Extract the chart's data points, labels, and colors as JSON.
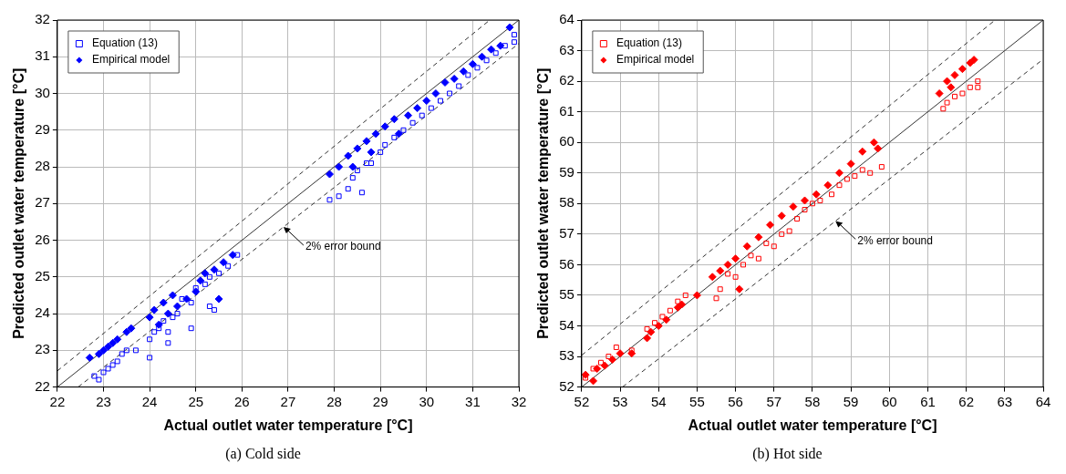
{
  "chart_data": [
    {
      "type": "scatter",
      "title": "(a) Cold side",
      "xlabel": "Actual outlet water temperature [°C]",
      "ylabel": "Predicted outlet water temperature [°C]",
      "xlim": [
        22,
        32
      ],
      "ylim": [
        22,
        32
      ],
      "xticks": [
        22,
        23,
        24,
        25,
        26,
        27,
        28,
        29,
        30,
        31,
        32
      ],
      "yticks": [
        22,
        23,
        24,
        25,
        26,
        27,
        28,
        29,
        30,
        31,
        32
      ],
      "grid": true,
      "legend": "top left",
      "annotations": [
        {
          "text": "2% error bound",
          "x": 26.9,
          "y": 26.36
        }
      ],
      "series": [
        {
          "name": "Equation (13)",
          "color": "#0000ff",
          "marker": "square",
          "x": [
            22.8,
            22.9,
            23.0,
            23.1,
            23.2,
            23.3,
            23.4,
            23.5,
            23.7,
            24.0,
            24.0,
            24.1,
            24.2,
            24.3,
            24.4,
            24.5,
            24.6,
            24.4,
            24.7,
            24.9,
            24.9,
            25.0,
            25.2,
            25.3,
            25.4,
            25.3,
            25.5,
            25.7,
            25.9,
            27.9,
            28.1,
            28.3,
            28.4,
            28.5,
            28.6,
            28.7,
            28.8,
            29.0,
            29.1,
            29.3,
            29.5,
            29.7,
            29.9,
            30.1,
            30.3,
            30.5,
            30.7,
            30.9,
            31.1,
            31.3,
            31.5,
            31.7,
            31.9,
            31.9
          ],
          "values": [
            22.3,
            22.2,
            22.4,
            22.5,
            22.6,
            22.7,
            22.9,
            23.0,
            23.0,
            22.8,
            23.3,
            23.5,
            23.6,
            23.8,
            23.5,
            23.9,
            24.0,
            23.2,
            24.4,
            23.6,
            24.3,
            24.7,
            24.8,
            24.2,
            24.1,
            25.0,
            25.1,
            25.3,
            25.6,
            27.1,
            27.2,
            27.4,
            27.7,
            27.9,
            27.3,
            28.1,
            28.1,
            28.4,
            28.6,
            28.8,
            29.0,
            29.2,
            29.4,
            29.6,
            29.8,
            30.0,
            30.2,
            30.5,
            30.7,
            30.9,
            31.1,
            31.3,
            31.6,
            31.4
          ]
        },
        {
          "name": "Empirical model",
          "color": "#0000ff",
          "marker": "diamond",
          "x": [
            22.7,
            22.9,
            23.0,
            23.1,
            23.2,
            23.3,
            23.5,
            23.6,
            24.0,
            24.1,
            24.2,
            24.3,
            24.4,
            24.5,
            24.6,
            24.8,
            25.0,
            25.1,
            25.2,
            25.4,
            25.5,
            25.6,
            25.8,
            27.9,
            28.1,
            28.3,
            28.4,
            28.5,
            28.7,
            28.8,
            28.9,
            29.1,
            29.3,
            29.4,
            29.6,
            29.8,
            30.0,
            30.2,
            30.4,
            30.6,
            30.8,
            31.0,
            31.2,
            31.4,
            31.6,
            31.8
          ],
          "values": [
            22.8,
            22.9,
            23.0,
            23.1,
            23.2,
            23.3,
            23.5,
            23.6,
            23.9,
            24.1,
            23.7,
            24.3,
            24.0,
            24.5,
            24.2,
            24.4,
            24.6,
            24.9,
            25.1,
            25.2,
            24.4,
            25.4,
            25.6,
            27.8,
            28.0,
            28.3,
            28.0,
            28.5,
            28.7,
            28.4,
            28.9,
            29.1,
            29.3,
            28.9,
            29.4,
            29.6,
            29.8,
            30.0,
            30.3,
            30.4,
            30.6,
            30.8,
            31.0,
            31.2,
            31.3,
            31.8
          ]
        },
        {
          "type": "line",
          "color": "#333333",
          "marker": "none",
          "line_style": "solid",
          "x": [
            22,
            32
          ],
          "values": [
            22,
            32
          ]
        },
        {
          "type": "line",
          "color": "#333333",
          "marker": "none",
          "line_style": "dashed",
          "x": [
            22,
            31.37
          ],
          "values": [
            22.44,
            32
          ]
        },
        {
          "type": "line",
          "color": "#333333",
          "marker": "none",
          "line_style": "dashed",
          "x": [
            22.45,
            32
          ],
          "values": [
            22,
            31.36
          ]
        }
      ]
    },
    {
      "type": "scatter",
      "title": "(b) Hot side",
      "xlabel": "Actual outlet water temperature [°C]",
      "ylabel": "Predicted outlet water temperature [°C]",
      "xlim": [
        52,
        64
      ],
      "ylim": [
        52,
        64
      ],
      "xticks": [
        52,
        53,
        54,
        55,
        56,
        57,
        58,
        59,
        60,
        61,
        62,
        63,
        64
      ],
      "yticks": [
        52,
        53,
        54,
        55,
        56,
        57,
        58,
        59,
        60,
        61,
        62,
        63,
        64
      ],
      "grid": true,
      "legend": "top left",
      "annotations": [
        {
          "text": "2% error bound",
          "x": 58.6,
          "y": 57.43
        }
      ],
      "series": [
        {
          "name": "Equation (13)",
          "color": "#ff0000",
          "marker": "square",
          "x": [
            52.1,
            52.3,
            52.5,
            52.7,
            52.9,
            53.3,
            53.7,
            53.9,
            54.1,
            54.3,
            54.5,
            54.7,
            55.5,
            55.6,
            55.8,
            56.0,
            56.2,
            56.4,
            56.6,
            56.8,
            57.0,
            57.2,
            57.4,
            57.6,
            57.8,
            58.0,
            58.2,
            58.5,
            58.7,
            58.9,
            59.1,
            59.3,
            59.5,
            59.8,
            61.4,
            61.5,
            61.7,
            61.9,
            62.1,
            62.3,
            62.3
          ],
          "values": [
            52.3,
            52.6,
            52.8,
            53.0,
            53.3,
            53.2,
            53.9,
            54.1,
            54.3,
            54.5,
            54.8,
            55.0,
            54.9,
            55.2,
            55.7,
            55.6,
            56.0,
            56.3,
            56.2,
            56.7,
            56.6,
            57.0,
            57.1,
            57.5,
            57.8,
            58.0,
            58.1,
            58.3,
            58.6,
            58.8,
            58.9,
            59.1,
            59.0,
            59.2,
            61.1,
            61.3,
            61.5,
            61.6,
            61.8,
            62.0,
            61.8
          ]
        },
        {
          "name": "Empirical model",
          "color": "#ff0000",
          "marker": "diamond",
          "x": [
            52.1,
            52.3,
            52.4,
            52.6,
            52.8,
            53.0,
            53.3,
            53.7,
            53.8,
            54.0,
            54.2,
            54.5,
            54.6,
            55.0,
            55.4,
            55.6,
            55.8,
            56.0,
            56.3,
            56.6,
            56.9,
            57.2,
            57.5,
            57.8,
            58.1,
            58.4,
            58.7,
            59.0,
            59.3,
            59.6,
            59.7,
            56.1,
            61.3,
            61.5,
            61.7,
            61.9,
            62.1,
            62.2,
            61.6
          ],
          "values": [
            52.4,
            52.2,
            52.6,
            52.7,
            52.9,
            53.1,
            53.1,
            53.6,
            53.8,
            54.0,
            54.2,
            54.6,
            54.7,
            55.0,
            55.6,
            55.8,
            56.0,
            56.2,
            56.6,
            56.9,
            57.3,
            57.6,
            57.9,
            58.1,
            58.3,
            58.6,
            59.0,
            59.3,
            59.7,
            60.0,
            59.8,
            55.2,
            61.6,
            62.0,
            62.2,
            62.4,
            62.6,
            62.7,
            61.8
          ]
        },
        {
          "type": "line",
          "color": "#333333",
          "marker": "none",
          "line_style": "solid",
          "x": [
            52,
            64
          ],
          "values": [
            52,
            64
          ]
        },
        {
          "type": "line",
          "color": "#333333",
          "marker": "none",
          "line_style": "dashed",
          "x": [
            52,
            62.75
          ],
          "values": [
            53.04,
            64
          ]
        },
        {
          "type": "line",
          "color": "#333333",
          "marker": "none",
          "line_style": "dashed",
          "x": [
            53.06,
            64
          ],
          "values": [
            52,
            62.72
          ]
        }
      ]
    }
  ]
}
